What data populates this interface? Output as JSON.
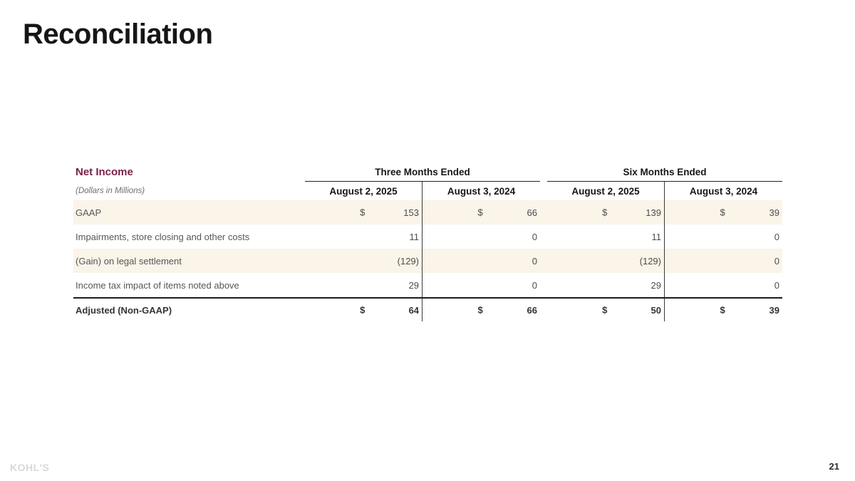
{
  "slide": {
    "title": "Reconciliation",
    "page_number": "21",
    "footer_logo": "KOHL'S"
  },
  "table": {
    "section_title": "Net Income",
    "units_note": "(Dollars in Millions)",
    "groups": [
      {
        "label": "Three Months Ended"
      },
      {
        "label": "Six Months Ended"
      }
    ],
    "column_headers": [
      "August 2, 2025",
      "August 3, 2024",
      "August 2, 2025",
      "August 3, 2024"
    ],
    "rows": [
      {
        "label": "GAAP",
        "dollars": [
          "$",
          "$",
          "$",
          "$"
        ],
        "values": [
          "153",
          "66",
          "139",
          "39"
        ]
      },
      {
        "label": "Impairments, store closing and other costs",
        "dollars": [
          "",
          "",
          "",
          ""
        ],
        "values": [
          "11",
          "0",
          "11",
          "0"
        ]
      },
      {
        "label": "(Gain) on legal settlement",
        "dollars": [
          "",
          "",
          "",
          ""
        ],
        "values": [
          "(129)",
          "0",
          "(129)",
          "0"
        ]
      },
      {
        "label": "Income tax impact of items noted above",
        "dollars": [
          "",
          "",
          "",
          ""
        ],
        "values": [
          "29",
          "0",
          "29",
          "0"
        ]
      },
      {
        "label": "Adjusted (Non-GAAP)",
        "dollars": [
          "$",
          "$",
          "$",
          "$"
        ],
        "values": [
          "64",
          "66",
          "50",
          "39"
        ]
      }
    ]
  },
  "colors": {
    "accent": "#7B2146",
    "stripe": "#FAF4E9",
    "logo-gray": "#d8d8d8"
  }
}
